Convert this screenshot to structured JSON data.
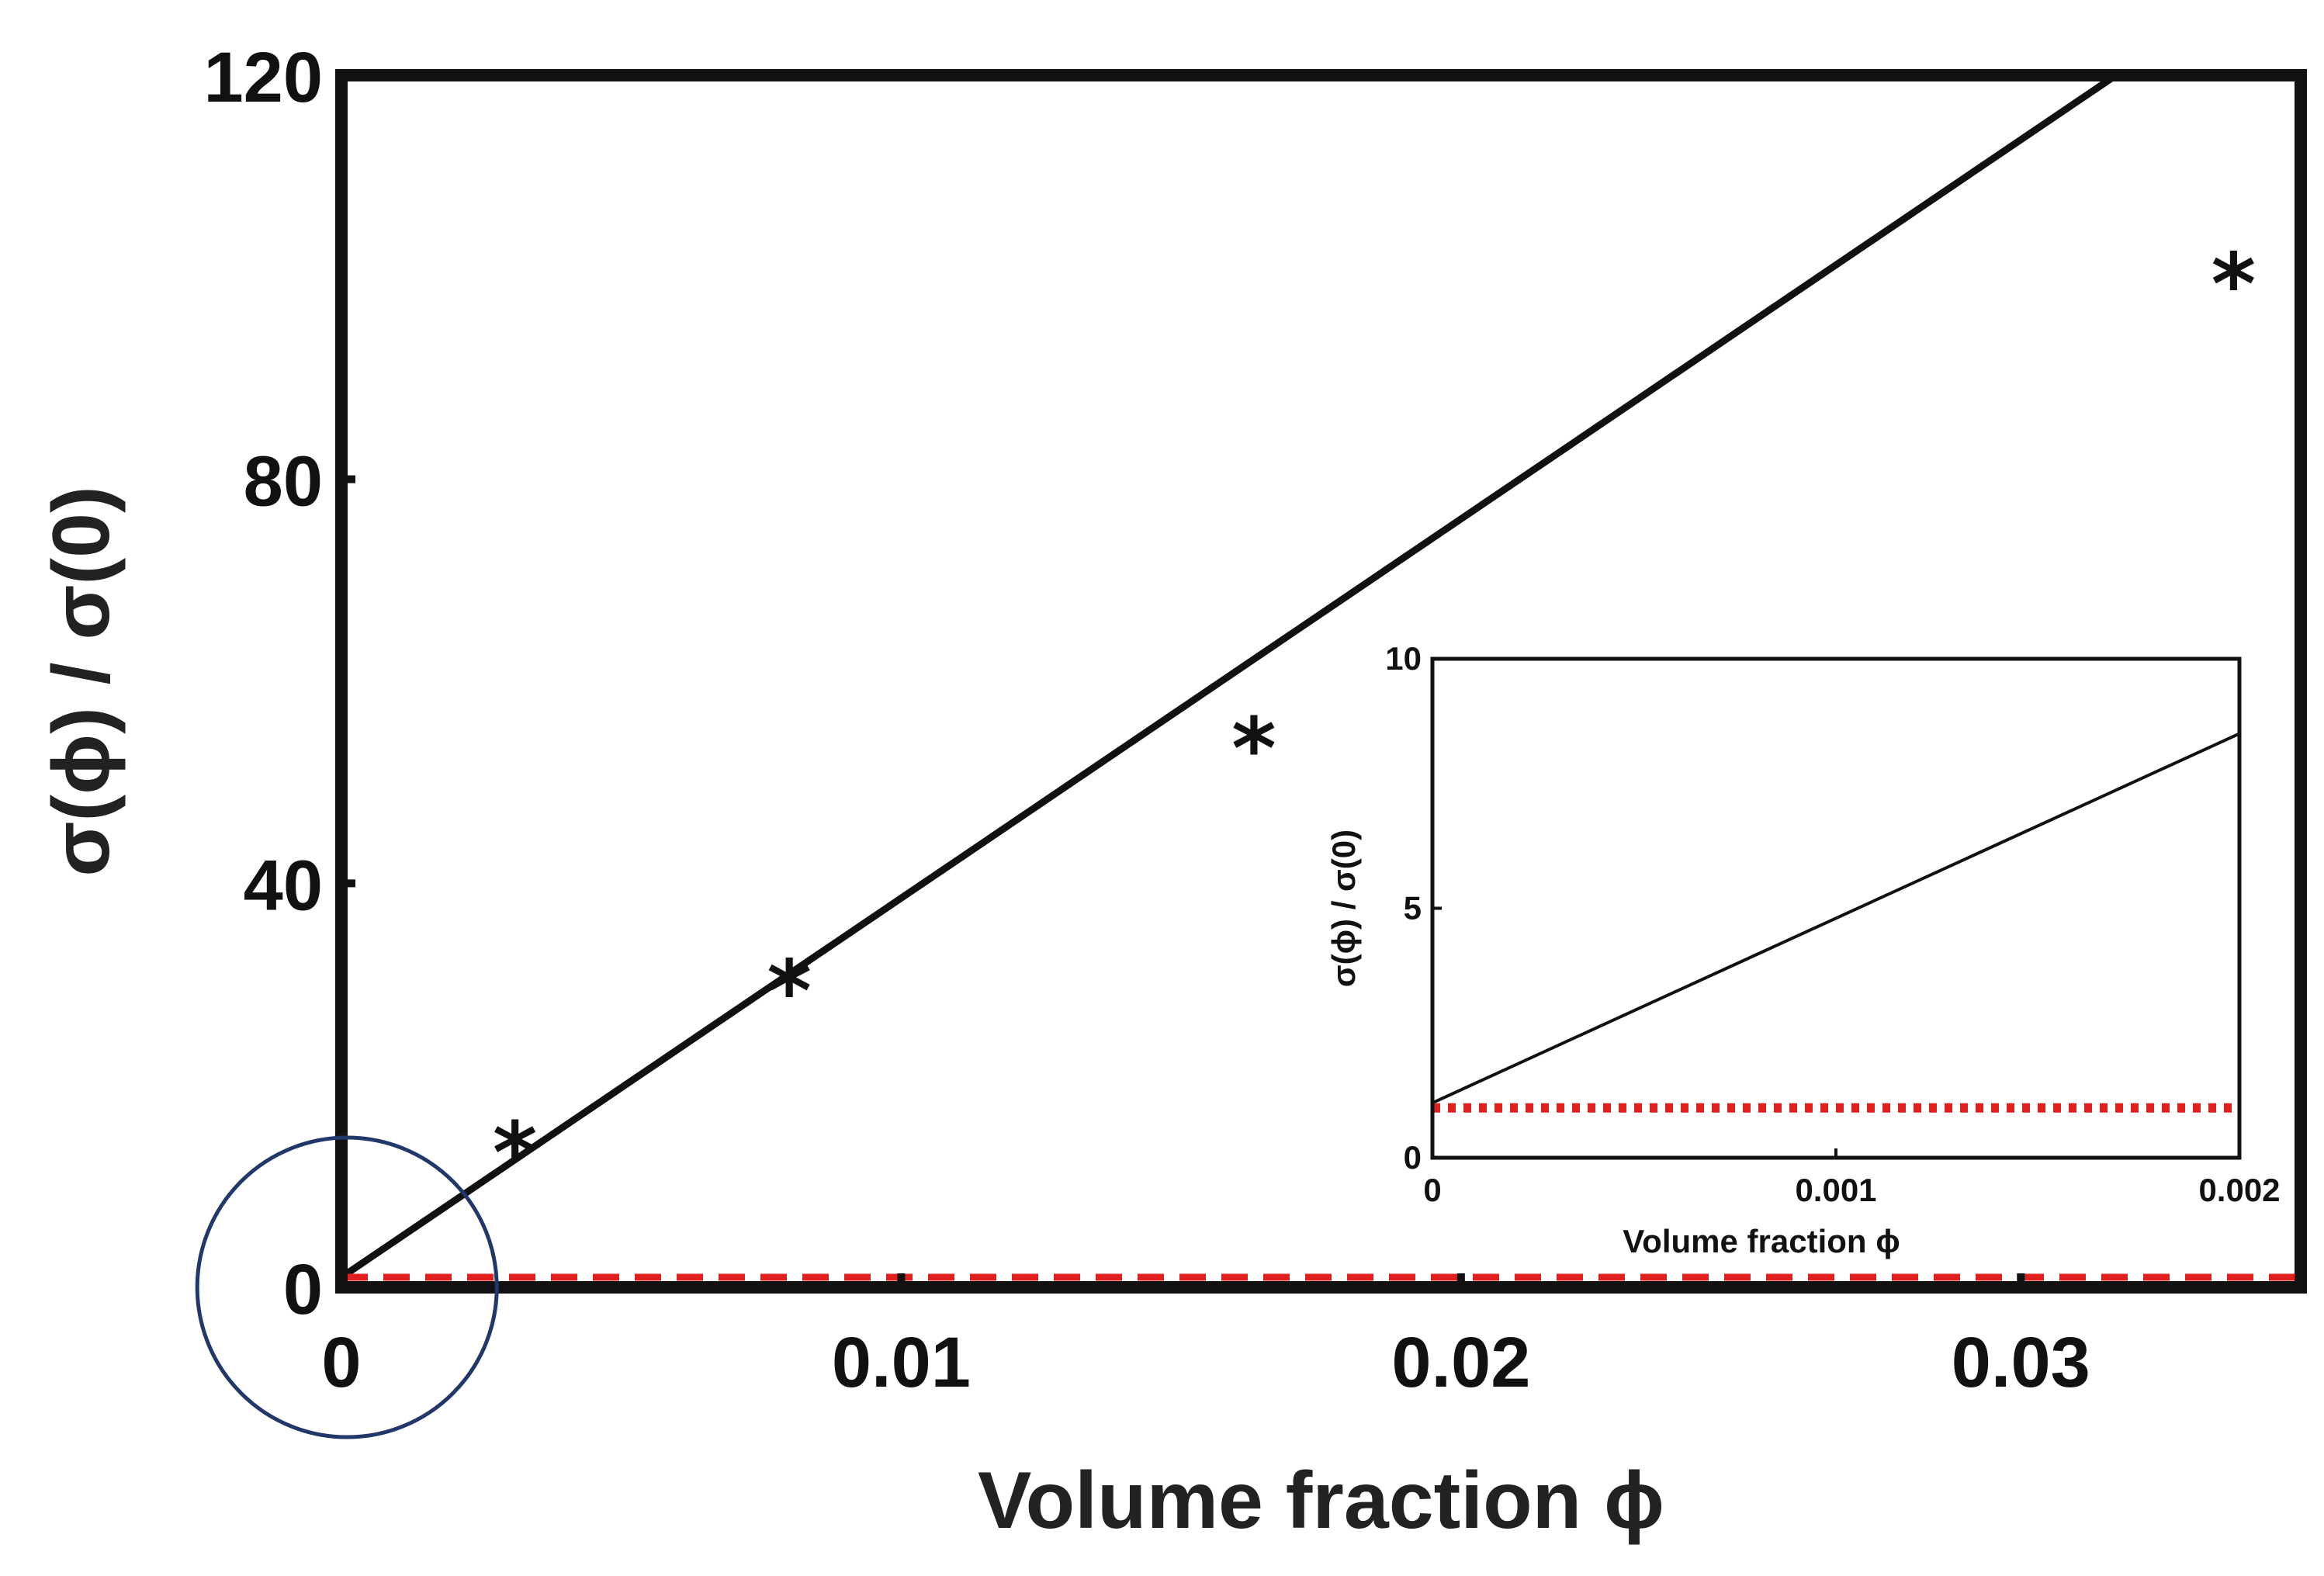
{
  "chart_data": [
    {
      "type": "line",
      "xlabel": "Volume fraction ϕ",
      "ylabel": "σ(ϕ) / σ(0)",
      "xlim": [
        0,
        0.035
      ],
      "ylim": [
        0,
        120
      ],
      "x_ticks": [
        0,
        0.01,
        0.02,
        0.03
      ],
      "x_tick_labels": [
        "0",
        "0.01",
        "0.02",
        "0.03"
      ],
      "y_ticks": [
        0,
        40,
        80,
        120
      ],
      "y_tick_labels": [
        "0",
        "40",
        "80",
        "120"
      ],
      "grid": false,
      "series": [
        {
          "style": "solid",
          "color": "#111111",
          "x": [
            0,
            0.0317
          ],
          "y": [
            1.0,
            120
          ]
        },
        {
          "style": "dashed",
          "color": "#e0201f",
          "x": [
            0,
            0.035
          ],
          "y": [
            1,
            1
          ]
        },
        {
          "style": "markers",
          "marker": "*",
          "color": "#111111",
          "x": [
            0.0031,
            0.008,
            0.0163,
            0.0338
          ],
          "y": [
            15,
            31,
            55,
            101
          ]
        }
      ],
      "annotations": [
        {
          "type": "circle",
          "color": "#22386a",
          "cx": 0.0001,
          "cy": 0,
          "note": ""
        }
      ]
    },
    {
      "type": "line",
      "inset": true,
      "xlabel": "Volume fraction ϕ",
      "ylabel": "σ(ϕ) / σ(0)",
      "xlim": [
        0,
        0.002
      ],
      "ylim": [
        0,
        10
      ],
      "x_ticks": [
        0,
        0.001,
        0.002
      ],
      "x_tick_labels": [
        "0",
        "0.001",
        "0.002"
      ],
      "y_ticks": [
        0,
        5,
        10
      ],
      "y_tick_labels": [
        "0",
        "5",
        "10"
      ],
      "grid": false,
      "series": [
        {
          "style": "solid",
          "color": "#111111",
          "x": [
            0,
            0.002
          ],
          "y": [
            1.1,
            8.5
          ]
        },
        {
          "style": "dotted",
          "color": "#e0201f",
          "x": [
            0,
            0.002
          ],
          "y": [
            1,
            1
          ]
        }
      ]
    }
  ]
}
